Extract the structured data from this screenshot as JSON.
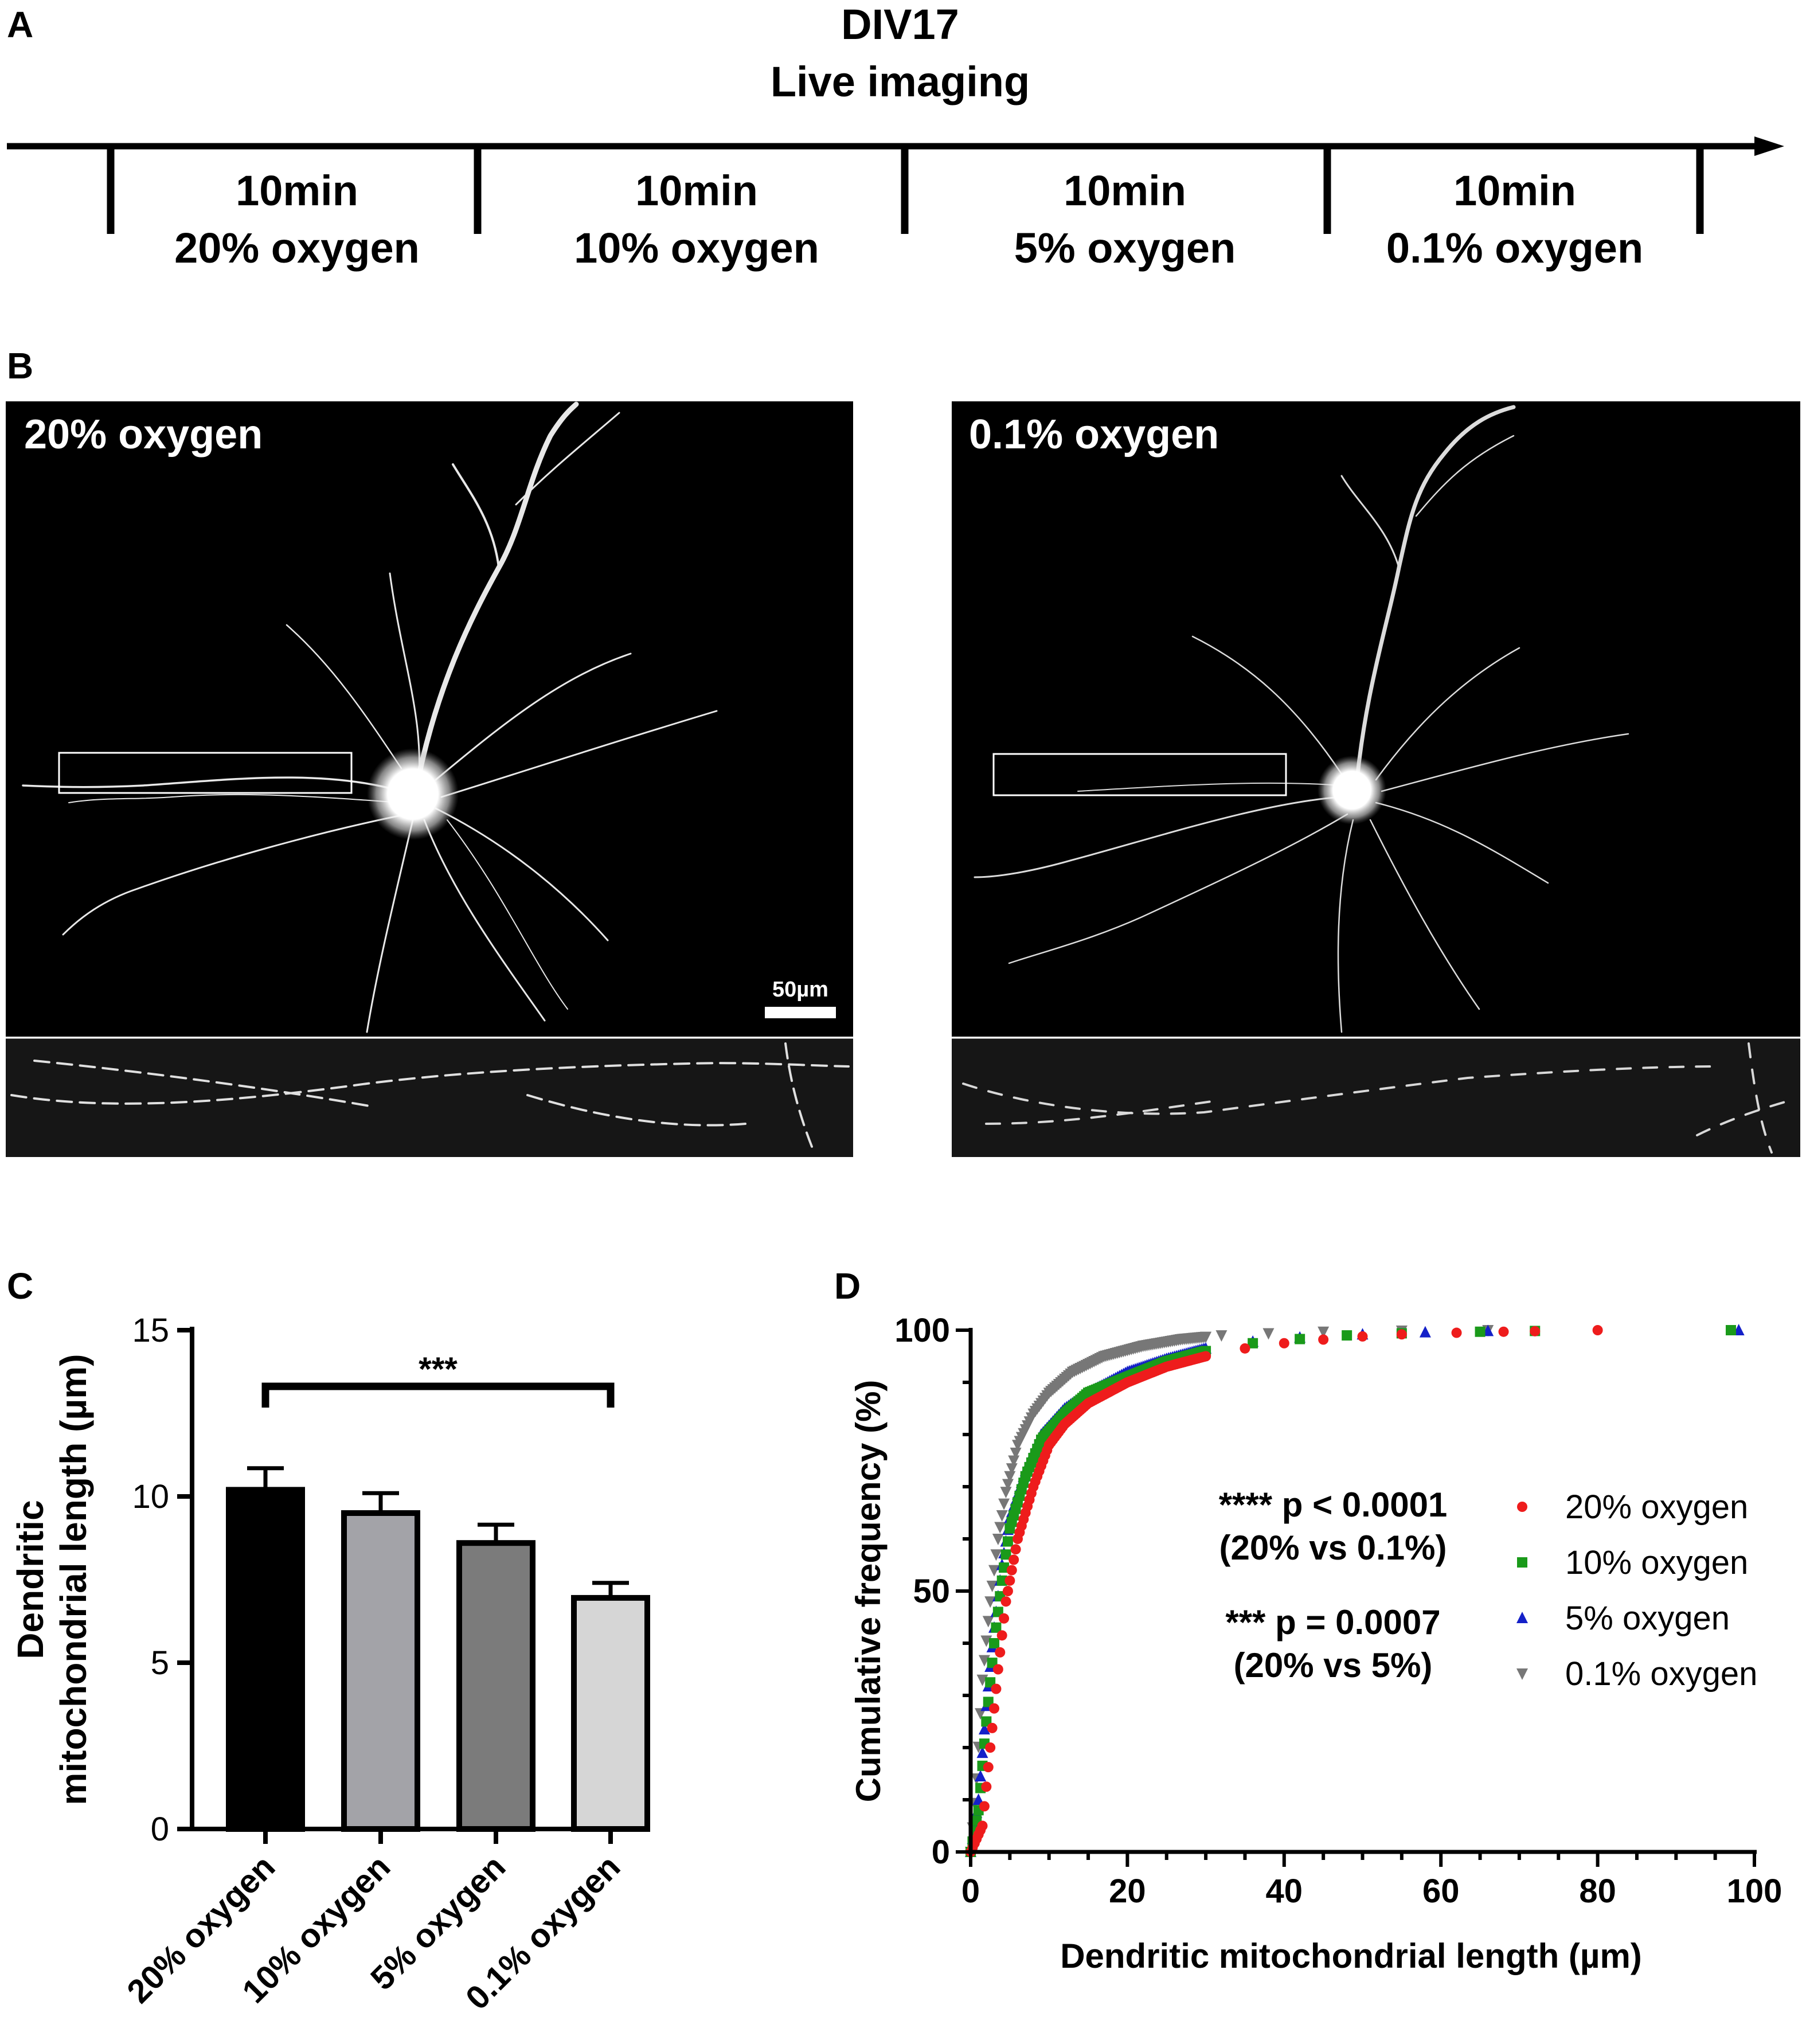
{
  "panel_a": {
    "letter": "A",
    "title_line1": "DIV17",
    "title_line2": "Live imaging",
    "phases": [
      {
        "duration": "10min",
        "condition": "20% oxygen"
      },
      {
        "duration": "10min",
        "condition": "10% oxygen"
      },
      {
        "duration": "10min",
        "condition": "5% oxygen"
      },
      {
        "duration": "10min",
        "condition": "0.1% oxygen"
      }
    ]
  },
  "panel_b": {
    "letter": "B",
    "left_label": "20% oxygen",
    "right_label": "0.1% oxygen",
    "scale_bar": "50µm"
  },
  "panel_c": {
    "letter": "C",
    "significance": "***"
  },
  "panel_d": {
    "letter": "D",
    "stat1_line1": "**** p < 0.0001",
    "stat1_line2": "(20% vs 0.1%)",
    "stat2_line1": "*** p = 0.0007",
    "stat2_line2": "(20% vs 5%)"
  },
  "chart_data": [
    {
      "type": "bar",
      "ylabel": [
        "Dendritic",
        "mitochondrial length (µm)"
      ],
      "categories": [
        "20% oxygen",
        "10% oxygen",
        "5% oxygen",
        "0.1% oxygen"
      ],
      "values": [
        10.2,
        9.5,
        8.6,
        6.95
      ],
      "errors": [
        0.65,
        0.6,
        0.55,
        0.45
      ],
      "colors": [
        "#000000",
        "#a3a3a8",
        "#7b7b7b",
        "#d6d6d6"
      ],
      "ylim": [
        0,
        15
      ],
      "yticks": [
        0,
        5,
        10,
        15
      ]
    },
    {
      "type": "scatter",
      "xlabel": "Dendritic mitochondrial length (µm)",
      "ylabel": "Cumulative frequency (%)",
      "xlim": [
        0,
        100
      ],
      "ylim": [
        0,
        100
      ],
      "xticks": [
        0,
        20,
        40,
        60,
        80,
        100
      ],
      "yticks": [
        0,
        50,
        100
      ],
      "legend_position": "right",
      "series": [
        {
          "name": "20% oxygen",
          "color": "#ee1c1c",
          "marker": "circle",
          "x": [
            0,
            1.5,
            2.5,
            3.5,
            4.5,
            6,
            8,
            10,
            12,
            15,
            20,
            25,
            30,
            35,
            40,
            45,
            50,
            55,
            62,
            68,
            72,
            80
          ],
          "y": [
            0,
            5,
            20,
            35,
            48,
            60,
            70,
            78,
            82,
            86,
            90,
            93,
            95,
            96.5,
            97.5,
            98.2,
            98.8,
            99.2,
            99.5,
            99.7,
            99.8,
            100
          ]
        },
        {
          "name": "10% oxygen",
          "color": "#1a9a1a",
          "marker": "square",
          "x": [
            0,
            1,
            2,
            3,
            4,
            5,
            7,
            9,
            12,
            15,
            20,
            25,
            30,
            36,
            42,
            48,
            55,
            65,
            72,
            97
          ],
          "y": [
            0,
            8,
            25,
            40,
            52,
            62,
            72,
            79,
            84,
            88,
            91,
            94,
            96,
            97.5,
            98.3,
            99,
            99.4,
            99.7,
            99.85,
            100
          ]
        },
        {
          "name": "5% oxygen",
          "color": "#1420c8",
          "marker": "triangle-up",
          "x": [
            0,
            1,
            2,
            3,
            4,
            5,
            7,
            9,
            12,
            15,
            20,
            25,
            30,
            36,
            42,
            50,
            58,
            66,
            98
          ],
          "y": [
            0,
            10,
            28,
            43,
            55,
            64,
            73,
            80,
            85,
            88,
            92,
            94.5,
            96.5,
            97.8,
            98.6,
            99.2,
            99.6,
            99.85,
            100
          ]
        },
        {
          "name": "0.1% oxygen",
          "color": "#777777",
          "marker": "triangle-down",
          "x": [
            0,
            0.8,
            1.5,
            2.5,
            3.5,
            4.5,
            6,
            8,
            10,
            13,
            17,
            22,
            27,
            32,
            38,
            45,
            55,
            66
          ],
          "y": [
            0,
            15,
            33,
            48,
            60,
            69,
            78,
            84,
            88,
            92,
            95,
            97,
            98.3,
            99,
            99.4,
            99.7,
            99.9,
            100
          ]
        }
      ]
    }
  ]
}
